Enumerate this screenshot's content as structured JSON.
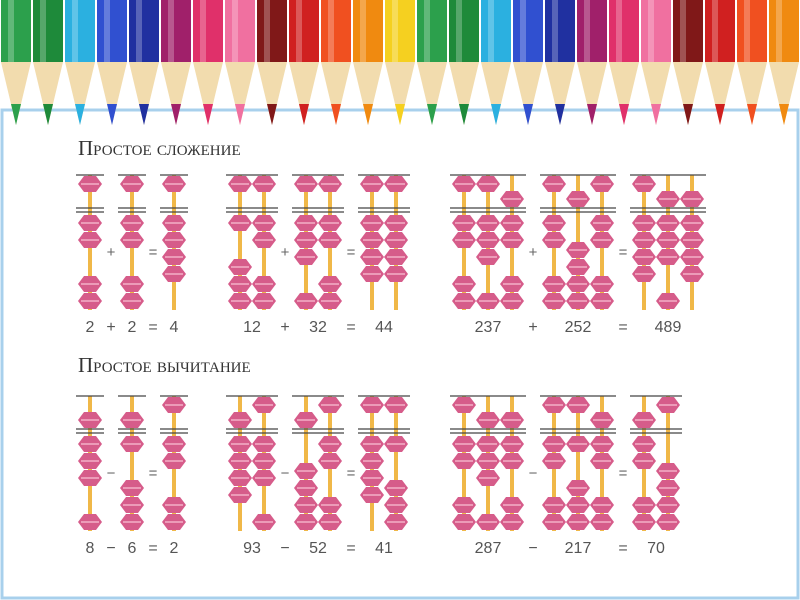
{
  "sections": [
    {
      "title": "Простое сложение",
      "equations": [
        {
          "a": 2,
          "op": "+",
          "b": 2,
          "eq": "=",
          "result": 4
        },
        {
          "a": 12,
          "op": "+",
          "b": 32,
          "eq": "=",
          "result": 44
        },
        {
          "a": 237,
          "op": "+",
          "b": 252,
          "eq": "=",
          "result": 489
        }
      ]
    },
    {
      "title": "Простое вычитание",
      "equations": [
        {
          "a": 8,
          "op": "−",
          "b": 6,
          "eq": "=",
          "result": 2
        },
        {
          "a": 93,
          "op": "−",
          "b": 52,
          "eq": "=",
          "result": 41
        },
        {
          "a": 287,
          "op": "−",
          "b": 217,
          "eq": "=",
          "result": 70
        }
      ]
    }
  ]
}
